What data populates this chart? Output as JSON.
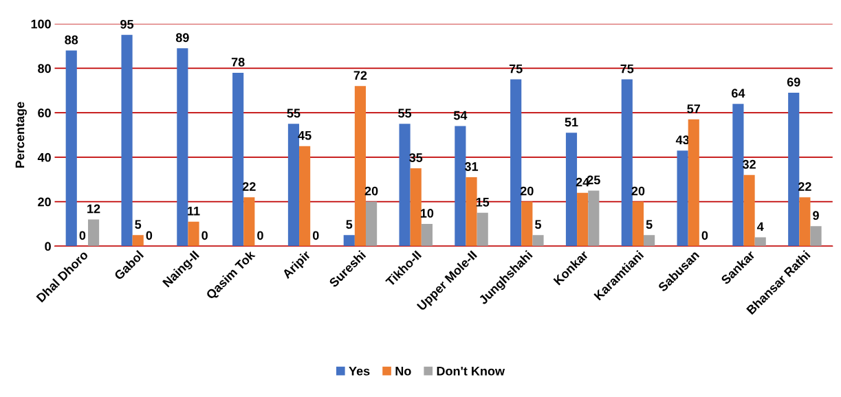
{
  "chart_data": {
    "type": "bar",
    "ylabel": "Percentage",
    "categories": [
      "Dhal Dhoro",
      "Gabol",
      "Naing-II",
      "Qasim Tok",
      "Aripir",
      "Sureshi",
      "Tikho-II",
      "Upper Mole-II",
      "Junghshahi",
      "Konkar",
      "Karamtiani",
      "Sabusan",
      "Sankar",
      "Bhansar Rathi"
    ],
    "series": [
      {
        "name": "Yes",
        "color": "#4472c4",
        "values": [
          88,
          95,
          89,
          78,
          55,
          5,
          55,
          54,
          75,
          51,
          75,
          43,
          64,
          69
        ]
      },
      {
        "name": "No",
        "color": "#ed7d31",
        "values": [
          0,
          5,
          11,
          22,
          45,
          72,
          35,
          31,
          20,
          24,
          20,
          57,
          32,
          22
        ]
      },
      {
        "name": "Don't Know",
        "color": "#a5a5a5",
        "values": [
          12,
          0,
          0,
          0,
          0,
          20,
          10,
          15,
          5,
          25,
          5,
          0,
          4,
          9
        ]
      }
    ],
    "ylim": [
      0,
      100
    ],
    "yticks": [
      0,
      20,
      40,
      60,
      80,
      100
    ],
    "grid": "y",
    "legend": "bottom",
    "data_labels": true
  }
}
